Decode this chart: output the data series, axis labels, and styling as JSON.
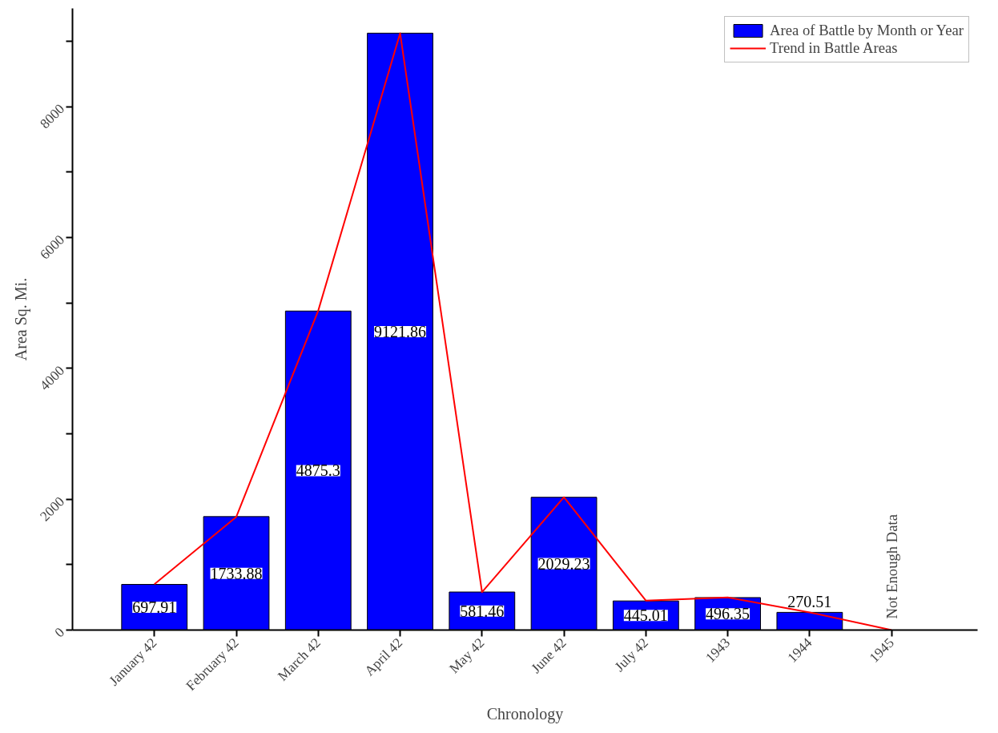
{
  "chart_data": {
    "type": "bar",
    "xlabel": "Chronology",
    "ylabel": "Area Sq. Mi.",
    "categories": [
      "January 42",
      "February 42",
      "March 42",
      "April 42",
      "May 42",
      "June 42",
      "July 42",
      "1943",
      "1944",
      "1945"
    ],
    "series": [
      {
        "name": "Area of Battle by Month or Year",
        "color": "#0000ff",
        "values": [
          697.91,
          1733.88,
          4875.3,
          9121.86,
          581.46,
          2029.23,
          445.01,
          496.35,
          270.51,
          null
        ],
        "value_labels": [
          "697.91",
          "1733.88",
          "4875.3",
          "9121.86",
          "581.46",
          "2029.23",
          "445.01",
          "496.35",
          "270.51",
          null
        ]
      },
      {
        "name": "Trend in Battle Areas",
        "type": "line",
        "color": "#ff0000",
        "values": [
          700,
          1730,
          4880,
          9120,
          580,
          2030,
          450,
          500,
          270,
          0
        ]
      }
    ],
    "ylim": [
      0,
      9500
    ],
    "yticks": [
      0,
      {
        "value": 1000,
        "label": null
      },
      2000,
      {
        "value": 3000,
        "label": null
      },
      4000,
      {
        "value": 5000,
        "label": null
      },
      6000,
      {
        "value": 7000,
        "label": null
      },
      8000,
      {
        "value": 9000,
        "label": null
      }
    ],
    "grid": false,
    "legend": "top right",
    "marker": "none",
    "annotations": [
      "Not Enough Data"
    ]
  }
}
